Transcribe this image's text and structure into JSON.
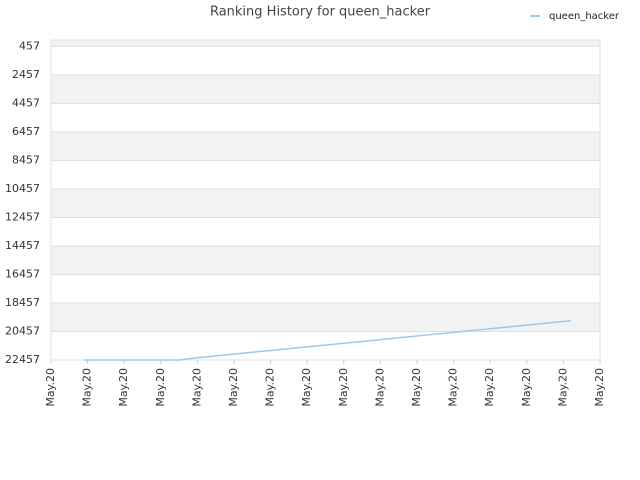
{
  "chart_data": {
    "type": "line",
    "title": "Ranking History for queen_hacker",
    "xlim": [
      0,
      15
    ],
    "xticks": [
      {
        "value": 0,
        "label": "May.20"
      },
      {
        "value": 1,
        "label": "May.20"
      },
      {
        "value": 2,
        "label": "May.20"
      },
      {
        "value": 3,
        "label": "May.20"
      },
      {
        "value": 4,
        "label": "May.20"
      },
      {
        "value": 5,
        "label": "May.20"
      },
      {
        "value": 6,
        "label": "May.20"
      },
      {
        "value": 7,
        "label": "May.20"
      },
      {
        "value": 8,
        "label": "May.20"
      },
      {
        "value": 9,
        "label": "May.20"
      },
      {
        "value": 10,
        "label": "May.20"
      },
      {
        "value": 11,
        "label": "May.20"
      },
      {
        "value": 12,
        "label": "May.20"
      },
      {
        "value": 13,
        "label": "May.20"
      },
      {
        "value": 14,
        "label": "May.20"
      },
      {
        "value": 15,
        "label": "May.20"
      }
    ],
    "ylim": [
      22457,
      0
    ],
    "yticks": [
      457,
      2457,
      4457,
      6457,
      8457,
      10457,
      12457,
      14457,
      16457,
      18457,
      20457,
      22457
    ],
    "grid": true,
    "legend": "top-right",
    "series": [
      {
        "name": "queen_hacker",
        "color": "#9ec9ec",
        "x": [
          0.9,
          2.2,
          3.5,
          4.0,
          14.2
        ],
        "values": [
          22457,
          22457,
          22457,
          22300,
          19700
        ]
      }
    ]
  }
}
